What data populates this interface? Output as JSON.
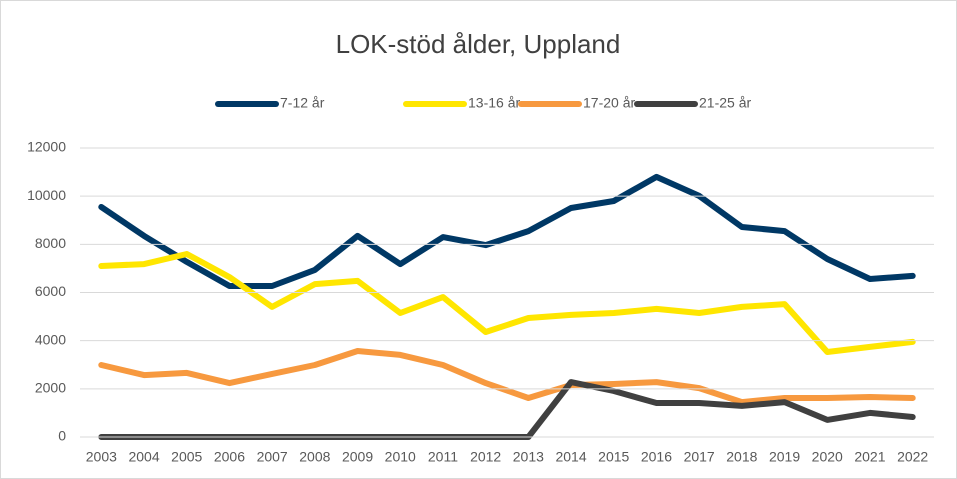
{
  "chart_data": {
    "type": "line",
    "title": "LOK-stöd ålder, Uppland",
    "categories": [
      "2003",
      "2004",
      "2005",
      "2006",
      "2007",
      "2008",
      "2009",
      "2010",
      "2011",
      "2012",
      "2013",
      "2014",
      "2015",
      "2016",
      "2017",
      "2018",
      "2019",
      "2020",
      "2021",
      "2022"
    ],
    "series": [
      {
        "name": "7-12 år",
        "color": "#003865",
        "values": [
          9550,
          8350,
          7270,
          6270,
          6270,
          6940,
          8350,
          7180,
          8300,
          7970,
          8550,
          9510,
          9800,
          10800,
          10010,
          8720,
          8550,
          7390,
          6560,
          6690
        ]
      },
      {
        "name": "13-16 år",
        "color": "#ffe600",
        "values": [
          7100,
          7180,
          7600,
          6640,
          5400,
          6350,
          6480,
          5150,
          5810,
          4360,
          4940,
          5070,
          5150,
          5320,
          5150,
          5400,
          5520,
          3530,
          3740,
          3950
        ]
      },
      {
        "name": "17-20 år",
        "color": "#f7993f",
        "values": [
          2990,
          2570,
          2660,
          2240,
          2620,
          2990,
          3570,
          3410,
          2990,
          2240,
          1620,
          2160,
          2200,
          2280,
          2030,
          1450,
          1620,
          1620,
          1660,
          1620
        ]
      },
      {
        "name": "21-25 år",
        "color": "#404040",
        "values": [
          0,
          0,
          0,
          0,
          0,
          0,
          0,
          0,
          0,
          0,
          0,
          2280,
          1910,
          1410,
          1410,
          1290,
          1450,
          710,
          1000,
          830
        ]
      }
    ],
    "ylim": [
      0,
      12000
    ],
    "yticks": [
      0,
      2000,
      4000,
      6000,
      8000,
      10000,
      12000
    ],
    "grid": true,
    "legend": "top"
  }
}
